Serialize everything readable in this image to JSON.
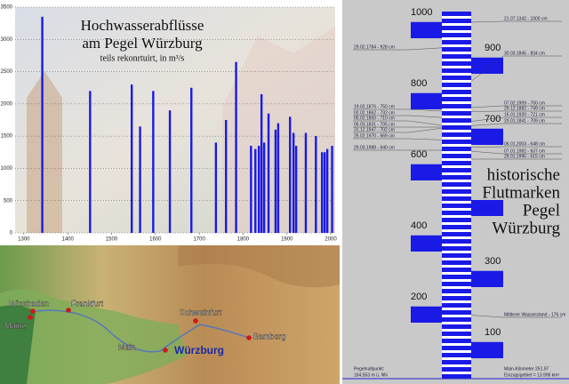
{
  "chart_data": {
    "type": "bar",
    "title": [
      "Hochwasserabflüsse",
      "am Pegel Würzburg"
    ],
    "subtitle": "teils rekonrtuirt, in m³/s",
    "x": [
      1342,
      1451,
      1546,
      1565,
      1595,
      1633,
      1682,
      1738,
      1761,
      1784,
      1818,
      1828,
      1836,
      1842,
      1848,
      1858,
      1874,
      1880,
      1907,
      1915,
      1921,
      1943,
      1966,
      1980,
      1986,
      1992,
      2003
    ],
    "values": [
      3350,
      2200,
      2300,
      1650,
      2200,
      1900,
      2250,
      1400,
      1750,
      2650,
      1350,
      1300,
      1350,
      2150,
      1400,
      1850,
      1600,
      1700,
      1800,
      1550,
      1350,
      1550,
      1500,
      1250,
      1250,
      1300,
      1350
    ],
    "color": "#1a1ae6",
    "xlim": [
      1280,
      2010
    ],
    "xticks": [
      1300,
      1400,
      1500,
      1600,
      1700,
      1800,
      1900,
      2000
    ],
    "ylim": [
      0,
      3500
    ],
    "yticks": [
      0,
      500,
      1000,
      1500,
      2000,
      2500,
      3000,
      3500
    ],
    "grid": true
  },
  "map": {
    "labels": [
      "Wiesbaden",
      "Frankfurt",
      "Mainz",
      "Main",
      "Schweinfurt",
      "Würzburg",
      "Bamberg"
    ]
  },
  "gauge": {
    "title": [
      "historische",
      "Flutmarken",
      "Pegel",
      "Würzburg"
    ],
    "ylim": [
      0,
      1000
    ],
    "ticks": [
      100,
      200,
      300,
      400,
      600,
      700,
      800,
      900,
      1000
    ],
    "marks_left": [
      {
        "label": "29.02.1784 - 928 cm",
        "level": 928
      },
      {
        "label": "19.02.1876 - 750 cm",
        "level": 750
      },
      {
        "label": "02.02.1862 - 732 cm",
        "level": 732
      },
      {
        "label": "05.02.1850 - 710 cm",
        "level": 710
      },
      {
        "label": "06.03.1831 - 705 cm",
        "level": 705
      },
      {
        "label": "31.12.1947 - 702 cm",
        "level": 702
      },
      {
        "label": "25.02.1970 - 669 cm",
        "level": 669
      },
      {
        "label": "29.03.1988 - 640 cm",
        "level": 640
      }
    ],
    "marks_right": [
      {
        "label": "21.07.1342 - 1000 cm",
        "level": 1000
      },
      {
        "label": "30.03.1845 - 834 cm",
        "level": 834
      },
      {
        "label": "07.02.1909 - 760 cm",
        "level": 760
      },
      {
        "label": "29.12.1882 - 749 cm",
        "level": 749
      },
      {
        "label": "16.01.1920 - 721 cm",
        "level": 721
      },
      {
        "label": "20.01.1841 - 709 cm",
        "level": 709
      },
      {
        "label": "06.01.2003 - 648 cm",
        "level": 648
      },
      {
        "label": "07.01.1982 - 637 cm",
        "level": 637
      },
      {
        "label": "29.01.1995 - 615 cm",
        "level": 615
      },
      {
        "label": "Mittlerer Wasserstand - 176 cm",
        "level": 176
      }
    ],
    "footer_left": [
      "Pegelnullpunkt:",
      "164,553 m ü. NN"
    ],
    "footer_right": [
      "Main-Kilometer 251,97",
      "Einzugsgebiet = 13.996 km²"
    ]
  }
}
